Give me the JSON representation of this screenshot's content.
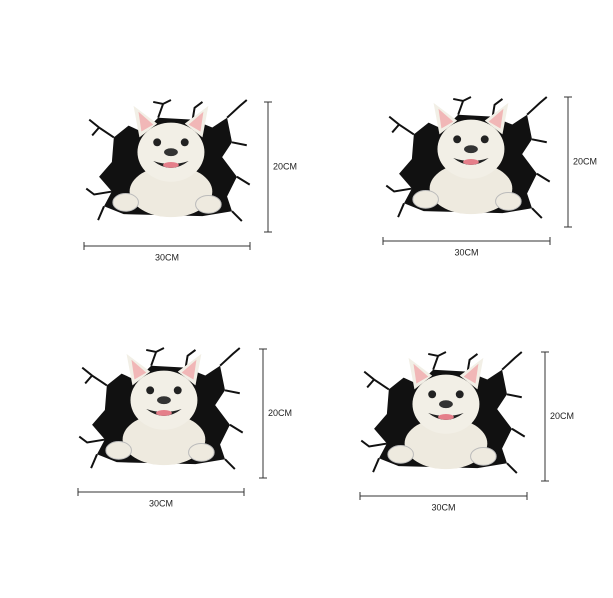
{
  "panels": [
    {
      "width_label": "30CM",
      "height_label": "20CM"
    },
    {
      "width_label": "30CM",
      "height_label": "20CM"
    },
    {
      "width_label": "30CM",
      "height_label": "20CM"
    },
    {
      "width_label": "30CM",
      "height_label": "20CM"
    }
  ]
}
